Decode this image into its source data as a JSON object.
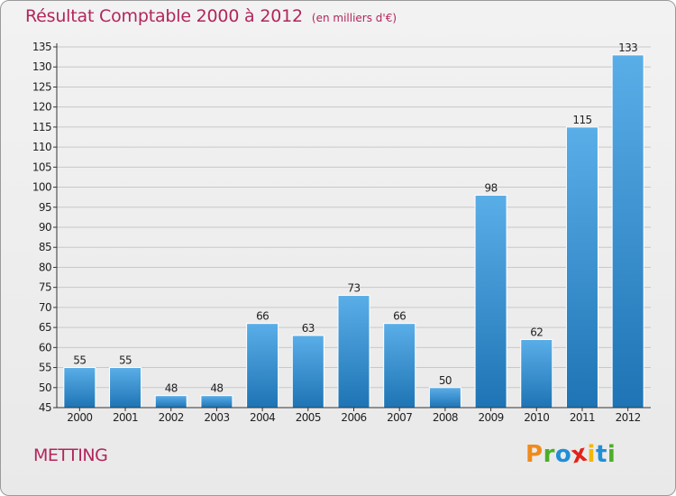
{
  "title": "Résultat Comptable 2000 à 2012",
  "subtitle": "(en milliers d'€)",
  "place": "METTING",
  "logo": {
    "letters": [
      "P",
      "r",
      "o",
      "x",
      "i",
      "t",
      "i"
    ],
    "colors": [
      "#ef8b1c",
      "#4caf28",
      "#1f8fd6",
      "#e2231a",
      "#f2b707",
      "#1f8fd6",
      "#4caf28"
    ]
  },
  "colors": {
    "title": "#b3255c",
    "bar_light": "#5aaee8",
    "bar_dark": "#1e74b4"
  },
  "chart_data": {
    "type": "bar",
    "title": "Résultat Comptable 2000 à 2012",
    "subtitle": "(en milliers d'€)",
    "categories": [
      "2000",
      "2001",
      "2002",
      "2003",
      "2004",
      "2005",
      "2006",
      "2007",
      "2008",
      "2009",
      "2010",
      "2011",
      "2012"
    ],
    "values": [
      55,
      55,
      48,
      48,
      66,
      63,
      73,
      66,
      50,
      98,
      62,
      115,
      133
    ],
    "ylim": [
      45,
      135
    ],
    "yticks": [
      45,
      50,
      55,
      60,
      65,
      70,
      75,
      80,
      85,
      90,
      95,
      100,
      105,
      110,
      115,
      120,
      125,
      130,
      135
    ],
    "grid": true,
    "xlabel": "",
    "ylabel": ""
  }
}
